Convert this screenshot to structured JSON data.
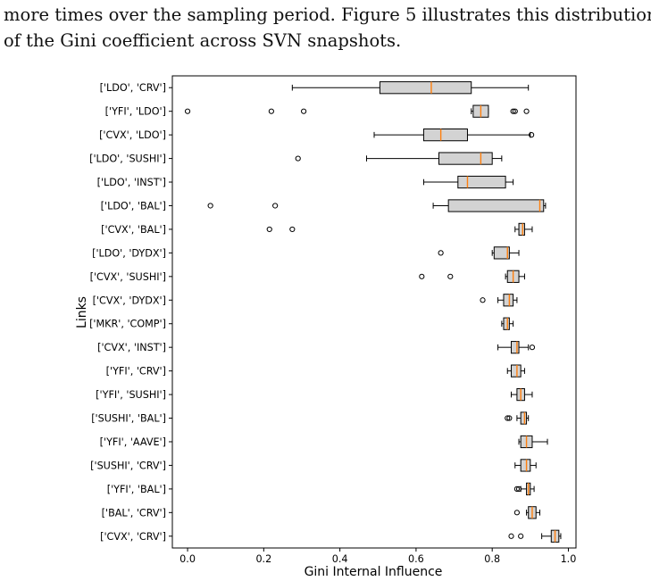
{
  "paper": {
    "line1": "more times over the sampling period.  Figure 5 illustrates this distribution",
    "line2": "of the Gini coefficient across SVN snapshots."
  },
  "chart_data": {
    "type": "boxplot",
    "orientation": "horizontal",
    "xlabel": "Gini Internal Influence",
    "ylabel": "Links",
    "xlim": [
      -0.04,
      1.02
    ],
    "xticks": [
      0.0,
      0.2,
      0.4,
      0.6,
      0.8,
      1.0
    ],
    "xtick_labels": [
      "0.0",
      "0.2",
      "0.4",
      "0.6",
      "0.8",
      "1.0"
    ],
    "grid": false,
    "box_color": "#d3d3d3",
    "median_color": "#ff7f0e",
    "categories": [
      "['LDO', 'CRV']",
      "['YFI', 'LDO']",
      "['CVX', 'LDO']",
      "['LDO', 'SUSHI']",
      "['LDO', 'INST']",
      "['LDO', 'BAL']",
      "['CVX', 'BAL']",
      "['LDO', 'DYDX']",
      "['CVX', 'SUSHI']",
      "['CVX', 'DYDX']",
      "['MKR', 'COMP']",
      "['CVX', 'INST']",
      "['YFI', 'CRV']",
      "['YFI', 'SUSHI']",
      "['SUSHI', 'BAL']",
      "['YFI', 'AAVE']",
      "['SUSHI', 'CRV']",
      "['YFI', 'BAL']",
      "['BAL', 'CRV']",
      "['CVX', 'CRV']"
    ],
    "boxes": [
      {
        "whislo": 0.275,
        "q1": 0.505,
        "med": 0.64,
        "q3": 0.745,
        "whishi": 0.895,
        "fliers": []
      },
      {
        "whislo": 0.745,
        "q1": 0.75,
        "med": 0.77,
        "q3": 0.79,
        "whishi": 0.79,
        "fliers": [
          0.0,
          0.22,
          0.305,
          0.855,
          0.86,
          0.89
        ]
      },
      {
        "whislo": 0.49,
        "q1": 0.62,
        "med": 0.665,
        "q3": 0.735,
        "whishi": 0.9,
        "fliers": [
          0.903
        ]
      },
      {
        "whislo": 0.47,
        "q1": 0.66,
        "med": 0.77,
        "q3": 0.8,
        "whishi": 0.825,
        "fliers": [
          0.29
        ]
      },
      {
        "whislo": 0.62,
        "q1": 0.71,
        "med": 0.735,
        "q3": 0.835,
        "whishi": 0.855,
        "fliers": []
      },
      {
        "whislo": 0.645,
        "q1": 0.685,
        "med": 0.925,
        "q3": 0.935,
        "whishi": 0.94,
        "fliers": [
          0.06,
          0.23
        ]
      },
      {
        "whislo": 0.86,
        "q1": 0.87,
        "med": 0.88,
        "q3": 0.885,
        "whishi": 0.905,
        "fliers": [
          0.215,
          0.275
        ]
      },
      {
        "whislo": 0.8,
        "q1": 0.805,
        "med": 0.84,
        "q3": 0.845,
        "whishi": 0.87,
        "fliers": [
          0.665
        ]
      },
      {
        "whislo": 0.835,
        "q1": 0.84,
        "med": 0.855,
        "q3": 0.87,
        "whishi": 0.885,
        "fliers": [
          0.615,
          0.69
        ]
      },
      {
        "whislo": 0.815,
        "q1": 0.83,
        "med": 0.845,
        "q3": 0.855,
        "whishi": 0.865,
        "fliers": [
          0.775
        ]
      },
      {
        "whislo": 0.825,
        "q1": 0.83,
        "med": 0.84,
        "q3": 0.845,
        "whishi": 0.855,
        "fliers": []
      },
      {
        "whislo": 0.815,
        "q1": 0.85,
        "med": 0.865,
        "q3": 0.87,
        "whishi": 0.895,
        "fliers": [
          0.905
        ]
      },
      {
        "whislo": 0.84,
        "q1": 0.85,
        "med": 0.865,
        "q3": 0.875,
        "whishi": 0.885,
        "fliers": []
      },
      {
        "whislo": 0.85,
        "q1": 0.865,
        "med": 0.875,
        "q3": 0.885,
        "whishi": 0.905,
        "fliers": []
      },
      {
        "whislo": 0.865,
        "q1": 0.875,
        "med": 0.885,
        "q3": 0.89,
        "whishi": 0.895,
        "fliers": [
          0.84,
          0.845
        ]
      },
      {
        "whislo": 0.87,
        "q1": 0.875,
        "med": 0.89,
        "q3": 0.905,
        "whishi": 0.945,
        "fliers": []
      },
      {
        "whislo": 0.86,
        "q1": 0.875,
        "med": 0.89,
        "q3": 0.9,
        "whishi": 0.915,
        "fliers": []
      },
      {
        "whislo": 0.875,
        "q1": 0.89,
        "med": 0.895,
        "q3": 0.9,
        "whishi": 0.91,
        "fliers": [
          0.865,
          0.87
        ]
      },
      {
        "whislo": 0.89,
        "q1": 0.895,
        "med": 0.905,
        "q3": 0.915,
        "whishi": 0.925,
        "fliers": [
          0.865
        ]
      },
      {
        "whislo": 0.93,
        "q1": 0.955,
        "med": 0.965,
        "q3": 0.975,
        "whishi": 0.98,
        "fliers": [
          0.85,
          0.875
        ]
      }
    ]
  }
}
